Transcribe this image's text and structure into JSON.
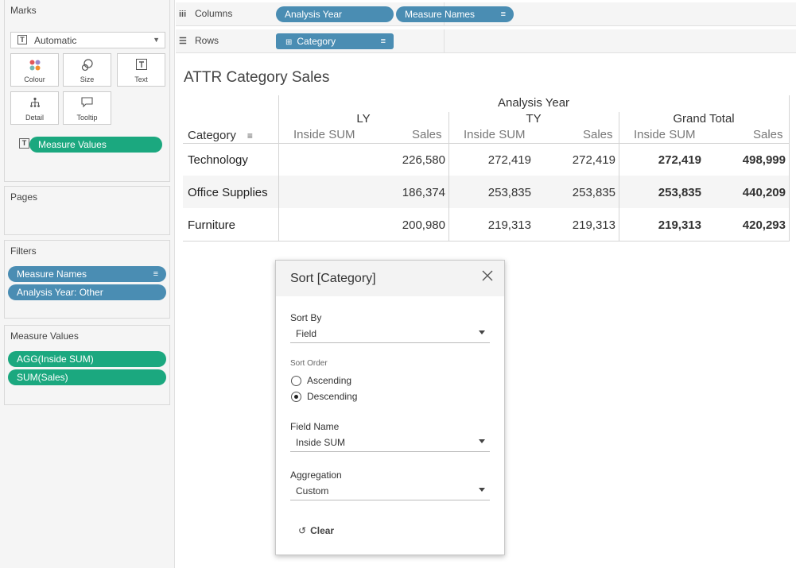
{
  "marks": {
    "title": "Marks",
    "mark_type": "Automatic",
    "buttons": [
      {
        "label": "Colour",
        "icon": "colour-icon"
      },
      {
        "label": "Size",
        "icon": "size-icon"
      },
      {
        "label": "Text",
        "icon": "text-icon"
      },
      {
        "label": "Detail",
        "icon": "detail-icon"
      },
      {
        "label": "Tooltip",
        "icon": "tooltip-icon"
      }
    ],
    "pill": "Measure Values"
  },
  "pages": {
    "title": "Pages"
  },
  "filters": {
    "title": "Filters",
    "pills": [
      "Measure Names",
      "Analysis Year: Other"
    ]
  },
  "measure_values": {
    "title": "Measure Values",
    "pills": [
      "AGG(Inside SUM)",
      "SUM(Sales)"
    ]
  },
  "shelves": {
    "columns_label": "Columns",
    "columns_pills": [
      "Analysis Year",
      "Measure Names"
    ],
    "rows_label": "Rows",
    "rows_pills": [
      "Category"
    ]
  },
  "view": {
    "title": "ATTR Category Sales",
    "top_header": "Analysis Year",
    "row_header": "Category",
    "groups": [
      "LY",
      "TY",
      "Grand Total"
    ],
    "measures": [
      "Inside SUM",
      "Sales"
    ],
    "rows": [
      {
        "category": "Technology",
        "ly_inside": "",
        "ly_sales": "226,580",
        "ty_inside": "272,419",
        "ty_sales": "272,419",
        "gt_inside": "272,419",
        "gt_sales": "498,999"
      },
      {
        "category": "Office Supplies",
        "ly_inside": "",
        "ly_sales": "186,374",
        "ty_inside": "253,835",
        "ty_sales": "253,835",
        "gt_inside": "253,835",
        "gt_sales": "440,209"
      },
      {
        "category": "Furniture",
        "ly_inside": "",
        "ly_sales": "200,980",
        "ty_inside": "219,313",
        "ty_sales": "219,313",
        "gt_inside": "219,313",
        "gt_sales": "420,293"
      }
    ]
  },
  "dialog": {
    "title": "Sort [Category]",
    "sort_by_label": "Sort By",
    "sort_by_value": "Field",
    "sort_order_label": "Sort Order",
    "ascending": "Ascending",
    "descending": "Descending",
    "selected_order": "Descending",
    "field_name_label": "Field Name",
    "field_name_value": "Inside SUM",
    "aggregation_label": "Aggregation",
    "aggregation_value": "Custom",
    "clear": "Clear"
  },
  "colors": {
    "green_pill": "#1ba87f",
    "blue_pill": "#4a8db3",
    "panel_bg": "#f5f5f5"
  }
}
